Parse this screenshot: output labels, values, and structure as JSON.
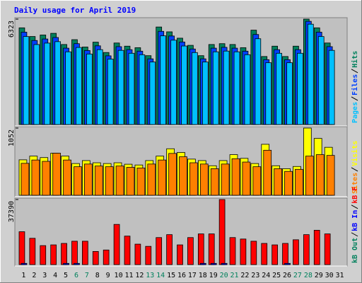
{
  "title": "Daily usage for April 2019",
  "chart_data": [
    {
      "type": "bar",
      "ylim": [
        0,
        6323
      ],
      "yticks": [
        6323
      ],
      "series": [
        {
          "name": "Hits",
          "color": "#00805c",
          "values": [
            5800,
            5280,
            5370,
            5470,
            4800,
            5090,
            4650,
            4940,
            4320,
            4890,
            4700,
            4610,
            4130,
            5850,
            5560,
            5180,
            4750,
            4130,
            4800,
            4850,
            4800,
            4610,
            5660,
            4080,
            4700,
            4080,
            4700,
            6323,
            5800,
            4890,
            null
          ]
        },
        {
          "name": "Files",
          "color": "#0040ff",
          "values": [
            5540,
            5040,
            5130,
            5220,
            4580,
            4850,
            4440,
            4720,
            4120,
            4670,
            4490,
            4400,
            3940,
            5590,
            5310,
            4950,
            4530,
            3940,
            4580,
            4630,
            4580,
            4400,
            5400,
            3890,
            4490,
            3890,
            4490,
            6190,
            5540,
            4670,
            null
          ]
        },
        {
          "name": "Pages",
          "color": "#00c0ff",
          "values": [
            5277,
            4797,
            4884,
            4972,
            4361,
            4623,
            4230,
            4492,
            3925,
            4448,
            4274,
            4187,
            3750,
            5320,
            5059,
            4710,
            4317,
            3750,
            4361,
            4405,
            4361,
            4187,
            5146,
            3707,
            4274,
            3707,
            4274,
            6018,
            5277,
            4448,
            null
          ]
        }
      ]
    },
    {
      "type": "bar",
      "ylim": [
        0,
        1052
      ],
      "yticks": [
        1052
      ],
      "series": [
        {
          "name": "Visits",
          "color": "#ffff00",
          "values": [
            555,
            613,
            590,
            659,
            613,
            497,
            543,
            509,
            497,
            509,
            486,
            474,
            543,
            613,
            728,
            670,
            566,
            543,
            462,
            543,
            636,
            578,
            497,
            798,
            462,
            416,
            451,
            1052,
            890,
            751,
            null
          ]
        },
        {
          "name": "Sites",
          "color": "#ff8000",
          "values": [
            500,
            552,
            531,
            659,
            552,
            447,
            489,
            458,
            447,
            458,
            437,
            427,
            489,
            552,
            655,
            603,
            509,
            489,
            416,
            489,
            572,
            520,
            447,
            705,
            416,
            374,
            406,
            613,
            636,
            624,
            null
          ]
        }
      ]
    },
    {
      "type": "bar",
      "ylim": [
        0,
        37390
      ],
      "yticks": [
        37390
      ],
      "categories": [
        "1",
        "2",
        "3",
        "4",
        "5",
        "6",
        "7",
        "8",
        "9",
        "10",
        "11",
        "12",
        "13",
        "14",
        "15",
        "16",
        "17",
        "18",
        "19",
        "20",
        "21",
        "22",
        "23",
        "24",
        "25",
        "26",
        "27",
        "28",
        "29",
        "30",
        "31"
      ],
      "category_colors": [
        "#000000",
        "#000000",
        "#000000",
        "#000000",
        "#000000",
        "#00805c",
        "#00805c",
        "#000000",
        "#000000",
        "#000000",
        "#000000",
        "#000000",
        "#00805c",
        "#00805c",
        "#000000",
        "#000000",
        "#000000",
        "#000000",
        "#000000",
        "#00805c",
        "#00805c",
        "#000000",
        "#000000",
        "#000000",
        "#000000",
        "#000000",
        "#00805c",
        "#00805c",
        "#000000",
        "#000000",
        "#000000"
      ],
      "series": [
        {
          "name": "kB F",
          "color": "#ff0000",
          "values": [
            18900,
            15120,
            10920,
            11340,
            12180,
            13440,
            13440,
            7560,
            8400,
            23100,
            16380,
            11760,
            10500,
            15540,
            17220,
            11340,
            15540,
            17640,
            17640,
            37390,
            15540,
            14700,
            13440,
            12180,
            11340,
            12180,
            14280,
            17220,
            19740,
            17640,
            null
          ]
        },
        {
          "name": "kB In",
          "color": "#0000ff",
          "values": [
            700,
            0,
            0,
            0,
            700,
            700,
            0,
            0,
            0,
            0,
            0,
            0,
            0,
            0,
            0,
            0,
            0,
            700,
            700,
            700,
            0,
            0,
            0,
            0,
            0,
            700,
            0,
            0,
            0,
            0,
            null
          ]
        },
        {
          "name": "kB Out",
          "color": "#00805c",
          "values": [
            0,
            0,
            0,
            0,
            0,
            0,
            0,
            0,
            0,
            0,
            0,
            0,
            0,
            0,
            0,
            0,
            0,
            0,
            0,
            0,
            0,
            0,
            0,
            0,
            0,
            0,
            0,
            0,
            0,
            0,
            null
          ]
        }
      ]
    }
  ]
}
